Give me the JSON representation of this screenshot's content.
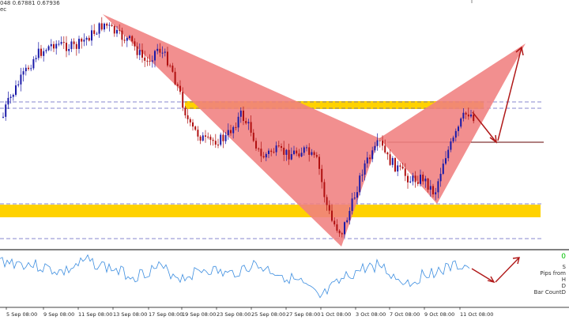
{
  "header": {
    "price_values": "048 0.67881 0.67936",
    "timer": "ec"
  },
  "indicator_panel": {
    "lines": [
      "0",
      "S",
      "Pips from",
      "H",
      "D",
      "Bar CountD"
    ],
    "value_color": "#00c000"
  },
  "time_axis": [
    "5 Sep 08:00",
    "9 Sep 08:00",
    "11 Sep 08:00",
    "13 Sep 08:00",
    "17 Sep 08:00",
    "19 Sep 08:00",
    "23 Sep 08:00",
    "25 Sep 08:00",
    "27 Sep 08:00",
    "1 Oct 08:00",
    "3 Oct 08:00",
    "7 Oct 08:00",
    "9 Oct 08:00",
    "11 Oct 08:00"
  ],
  "colors": {
    "bull_candle": "#1a1aa8",
    "bear_candle": "#b01010",
    "pattern_fill": "#f08080",
    "zone_fill": "#ffd200",
    "arrow": "#b01818",
    "dashed_level": "#6060c0",
    "oscillator_line": "#3d8ee0"
  }
}
